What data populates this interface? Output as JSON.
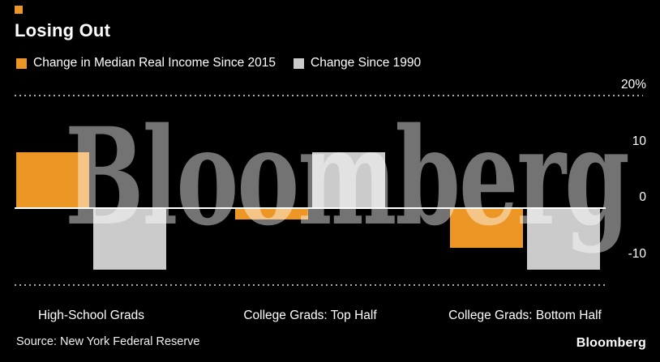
{
  "title": "Losing Out",
  "source": "Source: New York Federal Reserve",
  "logo": "Bloomberg",
  "watermark": "Bloomberg",
  "colors": {
    "background": "#000000",
    "accent_orange": "#EC9626",
    "bar_gray": "#CBCBCB",
    "text": "#FFFFFF"
  },
  "chart_data": {
    "type": "bar",
    "title": "Losing Out",
    "categories": [
      "High-School Grads",
      "College Grads: Top Half",
      "College Grads: Bottom Half"
    ],
    "series": [
      {
        "name": "Change in Median Real Income Since 2015",
        "color": "#EC9626",
        "values": [
          10,
          -2,
          -7
        ]
      },
      {
        "name": "Change Since 1990",
        "color": "#CBCBCB",
        "values": [
          -11,
          10,
          -11
        ]
      }
    ],
    "unit": "%",
    "ylim": [
      -13.7,
      20
    ],
    "yticks": [
      {
        "label": "20%",
        "value": 20
      },
      {
        "label": "10",
        "value": 10
      },
      {
        "label": "0",
        "value": 0
      },
      {
        "label": "-10",
        "value": -10
      }
    ],
    "gridlines": [
      {
        "value": 20,
        "style": "dotted"
      },
      {
        "value": -13.7,
        "style": "dotted"
      }
    ],
    "zero_line": true,
    "grid": "dotted top and bottom bounds, solid zero baseline",
    "legend_position": "top-left"
  }
}
